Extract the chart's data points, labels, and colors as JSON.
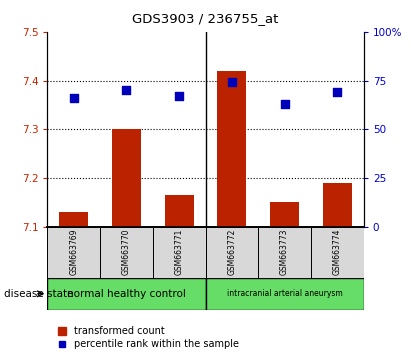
{
  "title": "GDS3903 / 236755_at",
  "samples": [
    "GSM663769",
    "GSM663770",
    "GSM663771",
    "GSM663772",
    "GSM663773",
    "GSM663774"
  ],
  "bar_values": [
    7.13,
    7.3,
    7.165,
    7.42,
    7.15,
    7.19
  ],
  "bar_bottom": 7.1,
  "percentile_values": [
    66,
    70,
    67,
    74,
    63,
    69
  ],
  "ylim_left": [
    7.1,
    7.5
  ],
  "ylim_right": [
    0,
    100
  ],
  "yticks_left": [
    7.1,
    7.2,
    7.3,
    7.4,
    7.5
  ],
  "yticks_right": [
    0,
    25,
    50,
    75,
    100
  ],
  "bar_color": "#bb2200",
  "dot_color": "#0000bb",
  "group1_label": "normal healthy control",
  "group2_label": "intracranial arterial aneurysm",
  "group1_indices": [
    0,
    1,
    2
  ],
  "group2_indices": [
    3,
    4,
    5
  ],
  "group1_color": "#66dd66",
  "group2_color": "#66dd66",
  "disease_label": "disease state",
  "legend_bar": "transformed count",
  "legend_dot": "percentile rank within the sample",
  "bar_width": 0.55,
  "dot_size": 40,
  "left_tick_color": "#cc2200",
  "right_tick_color": "#0000cc",
  "sample_box_color": "#d8d8d8",
  "plot_bg": "#ffffff"
}
